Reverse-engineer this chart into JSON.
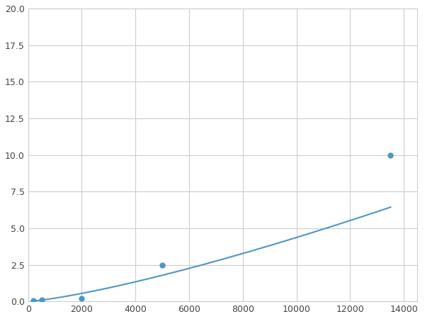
{
  "x_data": [
    200,
    500,
    800,
    2000,
    5000,
    13500
  ],
  "y_data": [
    0.05,
    0.1,
    0.12,
    0.18,
    2.5,
    10.0
  ],
  "marker_indices": [
    0,
    1,
    3,
    4,
    5
  ],
  "line_color": "#4e96c8",
  "marker_color": "#4e96c8",
  "marker_size": 6,
  "line_width": 1.5,
  "xlim": [
    0,
    14500
  ],
  "ylim": [
    0,
    20.0
  ],
  "xticks": [
    0,
    2000,
    4000,
    6000,
    8000,
    10000,
    12000,
    14000
  ],
  "yticks": [
    0.0,
    2.5,
    5.0,
    7.5,
    10.0,
    12.5,
    15.0,
    17.5,
    20.0
  ],
  "grid_color": "#cccccc",
  "background_color": "#ffffff",
  "figsize": [
    6.0,
    4.5
  ],
  "dpi": 100
}
